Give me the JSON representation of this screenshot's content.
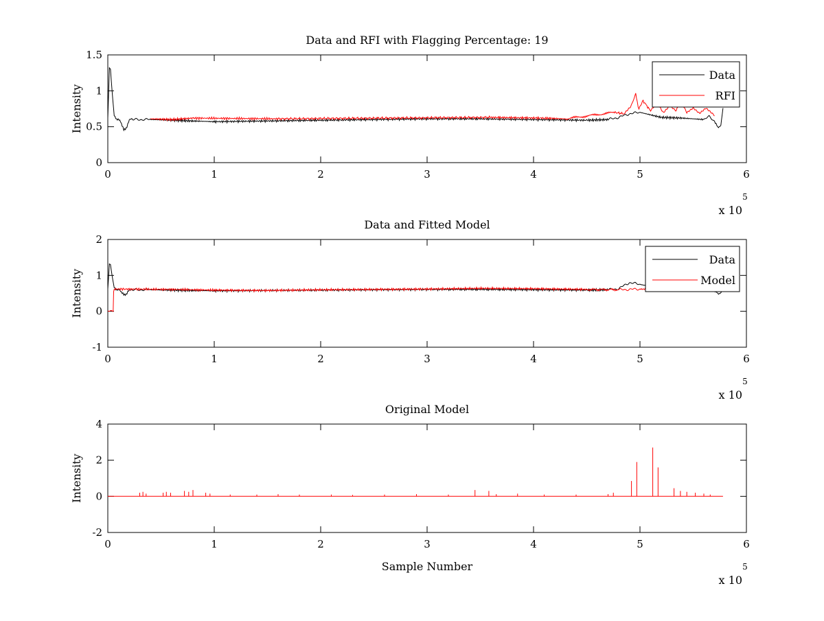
{
  "chart_data": [
    {
      "type": "line",
      "title": "Data and RFI with Flagging Percentage: 19",
      "xlabel": "",
      "ylabel": "Intensity",
      "xlim": [
        0,
        600000
      ],
      "ylim": [
        0,
        1.5
      ],
      "xticks": [
        0,
        1,
        2,
        3,
        4,
        5,
        6
      ],
      "xtick_multiplier": "x 10",
      "xtick_exponent": "5",
      "yticks": [
        "0",
        "0.5",
        "1",
        "1.5"
      ],
      "grid": false,
      "legend": "top-right",
      "series": [
        {
          "name": "Data",
          "color": "#000000",
          "x": [
            0,
            1500,
            2500,
            4000,
            6000,
            9000,
            12000,
            15000,
            18000,
            21000,
            25000,
            40000,
            60000,
            80000,
            100000,
            150000,
            200000,
            250000,
            300000,
            350000,
            400000,
            450000,
            470000,
            480000,
            490000,
            500000,
            520000,
            540000,
            560000,
            565000,
            570000,
            573000,
            576000,
            578000
          ],
          "y": [
            0.62,
            1.32,
            1.3,
            1.0,
            0.65,
            0.6,
            0.58,
            0.45,
            0.5,
            0.62,
            0.6,
            0.6,
            0.59,
            0.58,
            0.57,
            0.58,
            0.59,
            0.6,
            0.61,
            0.61,
            0.6,
            0.59,
            0.6,
            0.63,
            0.68,
            0.7,
            0.63,
            0.62,
            0.6,
            0.64,
            0.58,
            0.49,
            0.52,
            0.76
          ]
        },
        {
          "name": "RFI",
          "color": "#ff0000",
          "x": [
            40000,
            60000,
            80000,
            160000,
            360000,
            410000,
            430000,
            476000,
            485000,
            491000,
            496000,
            499000,
            503000,
            510000,
            516000,
            522000,
            528000,
            534000,
            538000,
            544000,
            550000,
            556000,
            562000,
            566000,
            570000
          ],
          "y": [
            0.61,
            0.6,
            0.62,
            0.61,
            0.63,
            0.62,
            0.61,
            0.7,
            0.68,
            0.77,
            0.95,
            0.74,
            0.86,
            0.72,
            0.83,
            0.7,
            0.8,
            0.73,
            0.88,
            0.7,
            0.76,
            0.68,
            0.75,
            0.7,
            0.65
          ]
        }
      ]
    },
    {
      "type": "line",
      "title": "Data and Fitted Model",
      "xlabel": "",
      "ylabel": "Intensity",
      "xlim": [
        0,
        600000
      ],
      "ylim": [
        -1,
        2
      ],
      "xticks": [
        0,
        1,
        2,
        3,
        4,
        5,
        6
      ],
      "xtick_multiplier": "x 10",
      "xtick_exponent": "5",
      "yticks": [
        "-1",
        "0",
        "1",
        "2"
      ],
      "grid": false,
      "legend": "top-right",
      "series": [
        {
          "name": "Data",
          "color": "#000000",
          "x": [
            0,
            1500,
            2500,
            4000,
            6000,
            9000,
            12000,
            15000,
            18000,
            21000,
            25000,
            40000,
            60000,
            80000,
            100000,
            150000,
            200000,
            250000,
            300000,
            350000,
            400000,
            450000,
            470000,
            480000,
            490000,
            500000,
            520000,
            540000,
            560000,
            565000,
            570000,
            573000,
            576000,
            578000
          ],
          "y": [
            0.62,
            1.32,
            1.3,
            1.0,
            0.65,
            0.6,
            0.58,
            0.45,
            0.5,
            0.62,
            0.6,
            0.6,
            0.59,
            0.58,
            0.57,
            0.58,
            0.59,
            0.6,
            0.61,
            0.61,
            0.6,
            0.59,
            0.6,
            0.63,
            0.8,
            0.75,
            0.63,
            0.62,
            0.6,
            0.64,
            0.58,
            0.49,
            0.52,
            0.6
          ]
        },
        {
          "name": "Model",
          "color": "#ff0000",
          "x": [
            0,
            5000,
            5500,
            6000,
            60000,
            100000,
            150000,
            200000,
            250000,
            300000,
            350000,
            400000,
            450000,
            480000,
            490000,
            500000,
            520000,
            560000,
            578000
          ],
          "y": [
            0,
            0,
            0.55,
            0.62,
            0.61,
            0.59,
            0.58,
            0.6,
            0.61,
            0.62,
            0.64,
            0.63,
            0.61,
            0.6,
            0.61,
            0.62,
            0.61,
            0.61,
            0.61
          ]
        }
      ]
    },
    {
      "type": "line",
      "title": "Original Model",
      "xlabel": "Sample Number",
      "ylabel": "Intensity",
      "xlim": [
        0,
        600000
      ],
      "ylim": [
        -2,
        4
      ],
      "xticks": [
        0,
        1,
        2,
        3,
        4,
        5,
        6
      ],
      "xtick_multiplier": "x 10",
      "xtick_exponent": "5",
      "yticks": [
        "-2",
        "0",
        "2",
        "4"
      ],
      "grid": false,
      "legend": "none",
      "series": [
        {
          "color": "#ff0000",
          "x": [
            0,
            578000
          ],
          "y": [
            0,
            0
          ],
          "spikes": [
            [
              30000,
              0.2
            ],
            [
              33000,
              0.25
            ],
            [
              36000,
              0.15
            ],
            [
              52000,
              0.2
            ],
            [
              55000,
              0.25
            ],
            [
              59000,
              0.2
            ],
            [
              72000,
              0.3
            ],
            [
              76000,
              0.25
            ],
            [
              80000,
              0.35
            ],
            [
              92000,
              0.2
            ],
            [
              96000,
              0.15
            ],
            [
              115000,
              0.1
            ],
            [
              140000,
              0.1
            ],
            [
              160000,
              0.12
            ],
            [
              180000,
              0.1
            ],
            [
              210000,
              0.1
            ],
            [
              230000,
              0.08
            ],
            [
              260000,
              0.1
            ],
            [
              290000,
              0.12
            ],
            [
              320000,
              0.1
            ],
            [
              345000,
              0.35
            ],
            [
              358000,
              0.3
            ],
            [
              365000,
              0.12
            ],
            [
              385000,
              0.15
            ],
            [
              410000,
              0.1
            ],
            [
              440000,
              0.1
            ],
            [
              470000,
              0.12
            ],
            [
              475000,
              0.2
            ],
            [
              492000,
              0.85
            ],
            [
              497000,
              1.9
            ],
            [
              512000,
              2.7
            ],
            [
              517000,
              1.6
            ],
            [
              532000,
              0.45
            ],
            [
              538000,
              0.3
            ],
            [
              544000,
              0.25
            ],
            [
              552000,
              0.2
            ],
            [
              560000,
              0.15
            ],
            [
              566000,
              0.1
            ]
          ]
        }
      ]
    }
  ]
}
